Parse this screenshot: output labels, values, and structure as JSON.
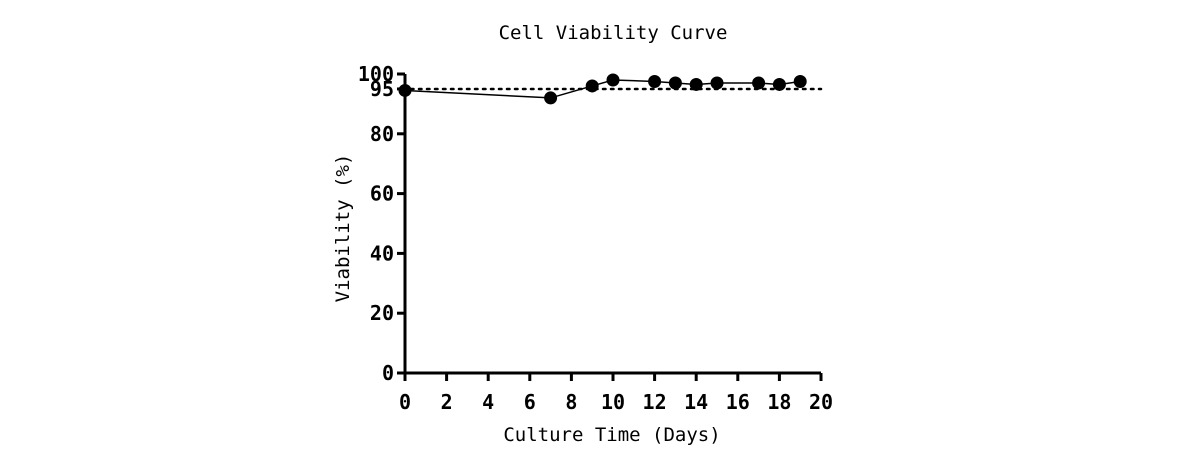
{
  "chart_data": {
    "type": "line",
    "title": "Cell Viability Curve",
    "xlabel": "Culture Time (Days)",
    "ylabel": "Viability (%)",
    "xlim": [
      0,
      20
    ],
    "ylim": [
      0,
      100
    ],
    "x_ticks": [
      0,
      2,
      4,
      6,
      8,
      10,
      12,
      14,
      16,
      18,
      20
    ],
    "y_ticks": [
      0,
      20,
      40,
      60,
      80,
      95,
      100
    ],
    "grid": false,
    "legend": "none",
    "series": [
      {
        "x": [
          0,
          7,
          9,
          10,
          12,
          13,
          14,
          15,
          17,
          18,
          19
        ],
        "y": [
          94.5,
          92,
          96,
          98,
          97.5,
          97,
          96.5,
          97,
          97,
          96.5,
          97.5
        ],
        "style": "line-with-filled-circle-markers",
        "color": "#000000"
      }
    ],
    "reference_lines": [
      {
        "y": 95,
        "style": "dotted",
        "color": "#000000"
      }
    ]
  }
}
